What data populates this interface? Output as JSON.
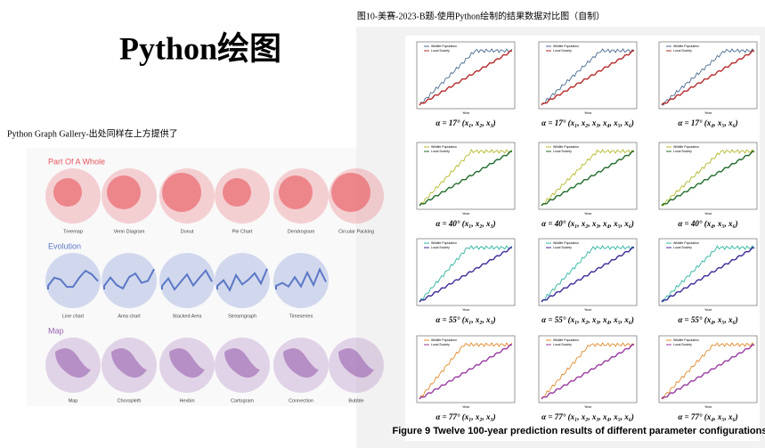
{
  "left": {
    "title": "Python绘图",
    "caption": "Python Graph Gallery-出处同样在上方提供了",
    "gallery": {
      "sections": [
        {
          "title": "Part Of A Whole",
          "color": "#e8555c",
          "items": [
            "Treemap",
            "Venn Diagram",
            "Donut",
            "Pie Chart",
            "Dendrogram",
            "Circular Packing"
          ]
        },
        {
          "title": "Evolution",
          "color": "#5b78c7",
          "items": [
            "Line chart",
            "Area chart",
            "Stacked Area",
            "Streamgraph",
            "Timeseries"
          ]
        },
        {
          "title": "Map",
          "color": "#9a62b0",
          "items": [
            "Map",
            "Choropleth",
            "Hexbin",
            "Cartogram",
            "Connection",
            "Bubble"
          ]
        }
      ]
    }
  },
  "right": {
    "caption": "图10-美赛-2023-B题-使用Python绘制的结果数据对比图（自制）",
    "legend": [
      "Wildlife Population",
      "Local Society"
    ],
    "x_label": "Year",
    "rows": [
      {
        "colors": [
          "#4a6a90",
          "#b52a2a"
        ],
        "labels": [
          "α = 17° (x₁, x₂, x₃)",
          "α = 17° (x₁, x₂, x₃, x₄, x₅, x₆)",
          "α = 17° (x₄, x₅, x₆)"
        ]
      },
      {
        "colors": [
          "#b5b82a",
          "#1f6b2a"
        ],
        "labels": [
          "α = 40° (x₁, x₂, x₃)",
          "α = 40° (x₁, x₂, x₃, x₄, x₅, x₆)",
          "α = 40° (x₄, x₅, x₆)"
        ]
      },
      {
        "colors": [
          "#2bb3a0",
          "#3a2a9a"
        ],
        "labels": [
          "α = 55° (x₁, x₂, x₃)",
          "α = 55° (x₁, x₂, x₃, x₄, x₅, x₆)",
          "α = 55° (x₄, x₅, x₆)"
        ]
      },
      {
        "colors": [
          "#e08a2a",
          "#9a3aa0"
        ],
        "labels": [
          "α = 77° (x₁, x₂, x₃)",
          "α = 77° (x₁, x₂, x₃, x₄, x₅, x₆)",
          "α = 77° (x₄, x₅, x₆)"
        ]
      }
    ],
    "figure_caption": "Figure 9 Twelve 100-year prediction results of different parameter configurations"
  }
}
